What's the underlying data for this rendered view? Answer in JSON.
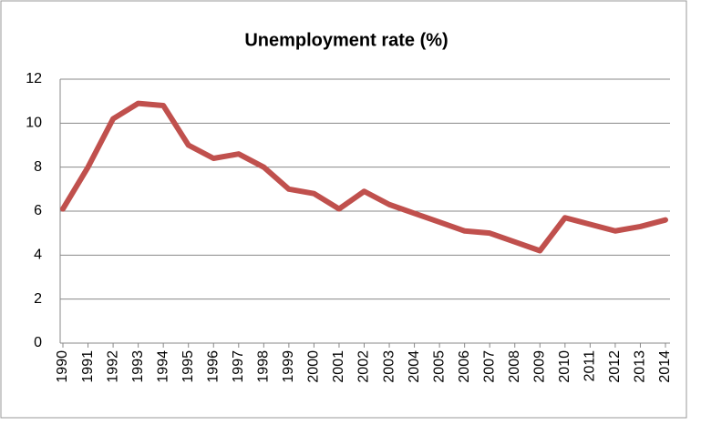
{
  "chart_data": {
    "type": "line",
    "title": "Unemployment rate (%)",
    "categories": [
      "1990",
      "1991",
      "1992",
      "1993",
      "1994",
      "1995",
      "1996",
      "1997",
      "1998",
      "1999",
      "2000",
      "2001",
      "2002",
      "2003",
      "2004",
      "2005",
      "2006",
      "2007",
      "2008",
      "2009",
      "2010",
      "2011",
      "2012",
      "2013",
      "2014"
    ],
    "series": [
      {
        "name": "Unemployment rate",
        "color": "#c0504d",
        "values": [
          6.1,
          8.0,
          10.2,
          10.9,
          10.8,
          9.0,
          8.4,
          8.6,
          8.0,
          7.0,
          6.8,
          6.1,
          6.9,
          6.3,
          5.9,
          5.5,
          5.1,
          5.0,
          4.6,
          4.2,
          5.7,
          5.4,
          5.1,
          5.3,
          5.6
        ]
      }
    ],
    "ylim": [
      0,
      12
    ],
    "yticks": [
      0,
      2,
      4,
      6,
      8,
      10,
      12
    ],
    "grid": true
  }
}
